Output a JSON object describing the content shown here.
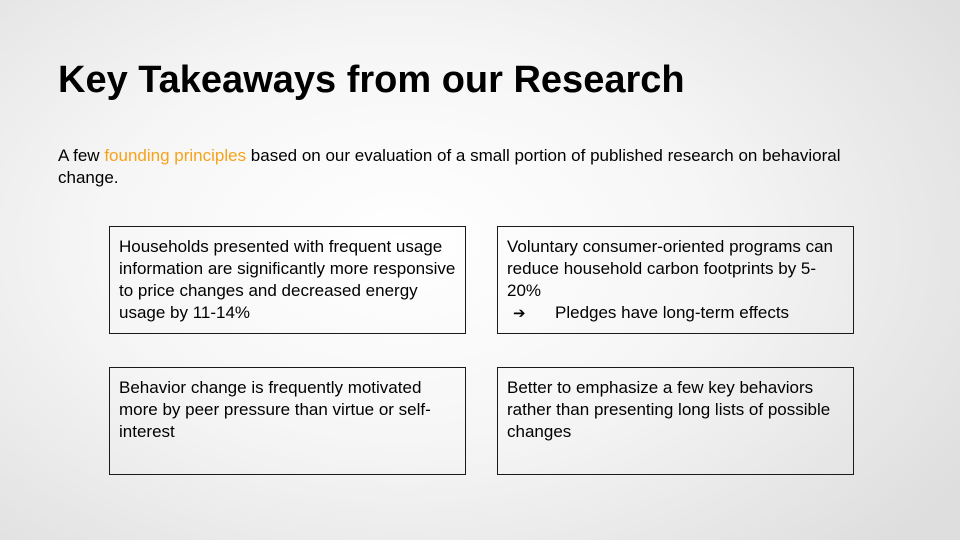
{
  "slide": {
    "title": "Key Takeaways from our Research",
    "subtitle": {
      "before": "A few ",
      "highlight": "founding principles",
      "after": " based on our evaluation of a small portion of published research on behavioral change.",
      "highlight_color": "#f6a31b"
    },
    "cards": [
      {
        "text": "Households presented with frequent usage information are significantly more responsive to price changes and decreased energy usage by 11-14%"
      },
      {
        "text": "Voluntary consumer-oriented programs can reduce household carbon footprints by 5-20%",
        "bullet_icon": "➔",
        "bullet": "Pledges have long-term effects"
      },
      {
        "text": "Behavior change is frequently motivated more by peer pressure than virtue or self-interest"
      },
      {
        "text": "Better to emphasize a few key behaviors rather than presenting long lists of possible changes"
      }
    ]
  }
}
